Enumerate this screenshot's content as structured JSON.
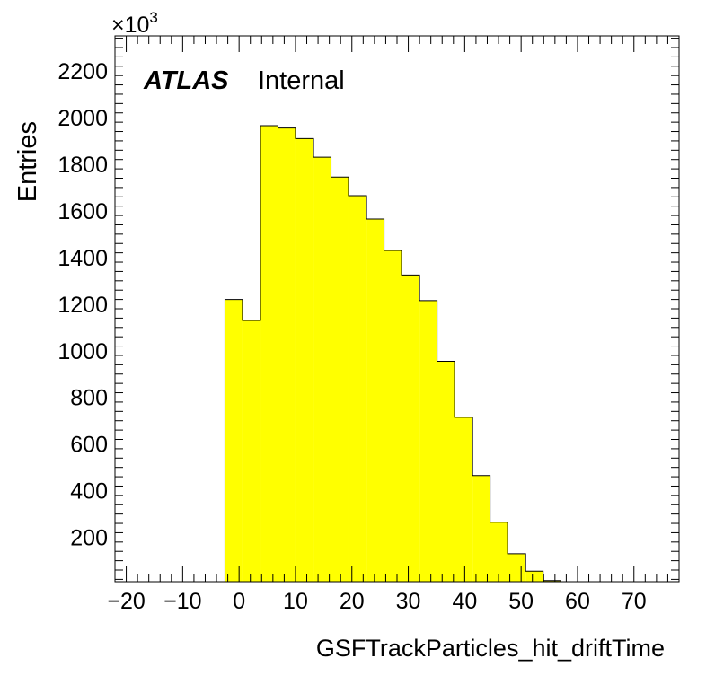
{
  "chart_data": {
    "type": "bar",
    "style": "histogram",
    "xlabel": "GSFTrackParticles_hit_driftTime",
    "ylabel": "Entries",
    "y_multiplier": "×10",
    "y_multiplier_exponent": "3",
    "label_bold": "ATLAS",
    "label_normal": "Internal",
    "xlim": [
      -22,
      78
    ],
    "ylim": [
      10,
      2350
    ],
    "x_ticks": [
      "−20",
      "−10",
      "0",
      "10",
      "20",
      "30",
      "40",
      "50",
      "60",
      "70"
    ],
    "x_tick_values": [
      -20,
      -10,
      0,
      10,
      20,
      30,
      40,
      50,
      60,
      70
    ],
    "y_ticks": [
      "200",
      "400",
      "600",
      "800",
      "1000",
      "1200",
      "1400",
      "1600",
      "1800",
      "2000",
      "2200"
    ],
    "y_tick_values": [
      200,
      400,
      600,
      800,
      1000,
      1200,
      1400,
      1600,
      1800,
      2000,
      2200
    ],
    "bin_edges": [
      -2.5,
      0.6,
      3.8,
      6.9,
      10.0,
      13.2,
      16.3,
      19.4,
      22.6,
      25.7,
      28.8,
      32.0,
      35.1,
      38.2,
      41.4,
      44.5,
      47.6,
      50.8,
      53.9,
      57.0
    ],
    "values": [
      1220,
      1130,
      1965,
      1955,
      1910,
      1830,
      1745,
      1665,
      1565,
      1430,
      1325,
      1215,
      955,
      715,
      465,
      265,
      130,
      55,
      15
    ],
    "fill_color": "#ffff00",
    "line_color": "#000000"
  }
}
